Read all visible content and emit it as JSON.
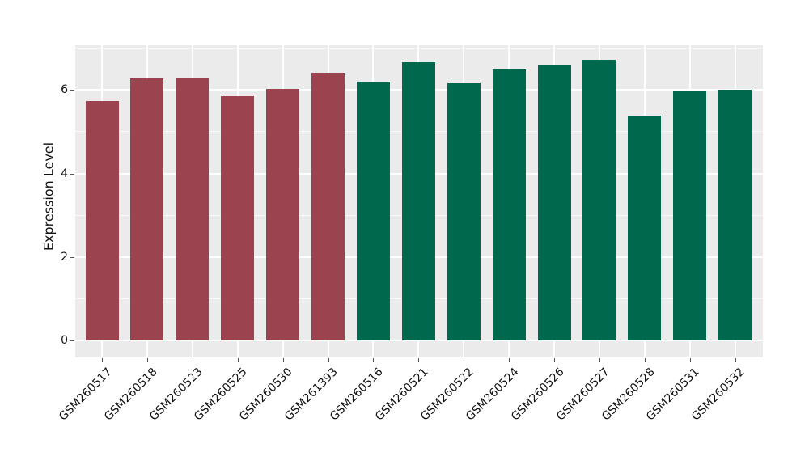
{
  "figure": {
    "background_color": "#FFFFFF",
    "panel_color": "#EBEBEB",
    "grid_color": "#FFFFFF",
    "tick_color": "#555555",
    "text_color": "#111111"
  },
  "chart_data": {
    "type": "bar",
    "title": "",
    "xlabel": "",
    "ylabel": "Expression Level",
    "categories": [
      "GSM260517",
      "GSM260518",
      "GSM260523",
      "GSM260525",
      "GSM260530",
      "GSM261393",
      "GSM260516",
      "GSM260521",
      "GSM260522",
      "GSM260524",
      "GSM260526",
      "GSM260527",
      "GSM260528",
      "GSM260531",
      "GSM260532"
    ],
    "values": [
      5.74,
      6.27,
      6.3,
      5.85,
      6.02,
      6.42,
      6.19,
      6.67,
      6.16,
      6.51,
      6.61,
      6.73,
      5.38,
      5.98,
      6.01
    ],
    "bar_groups": [
      "maroon",
      "maroon",
      "maroon",
      "maroon",
      "maroon",
      "maroon",
      "green",
      "green",
      "green",
      "green",
      "green",
      "green",
      "green",
      "green",
      "green"
    ],
    "group_colors": {
      "maroon": "#9C4350",
      "green": "#00684C"
    },
    "ylim": [
      -0.4,
      7.07
    ],
    "yticks": [
      0,
      2,
      4,
      6
    ],
    "yticks_minor": [
      1,
      3,
      5,
      7
    ],
    "grid": true,
    "legend_position": "none",
    "x_tick_rotation_deg": 45
  }
}
